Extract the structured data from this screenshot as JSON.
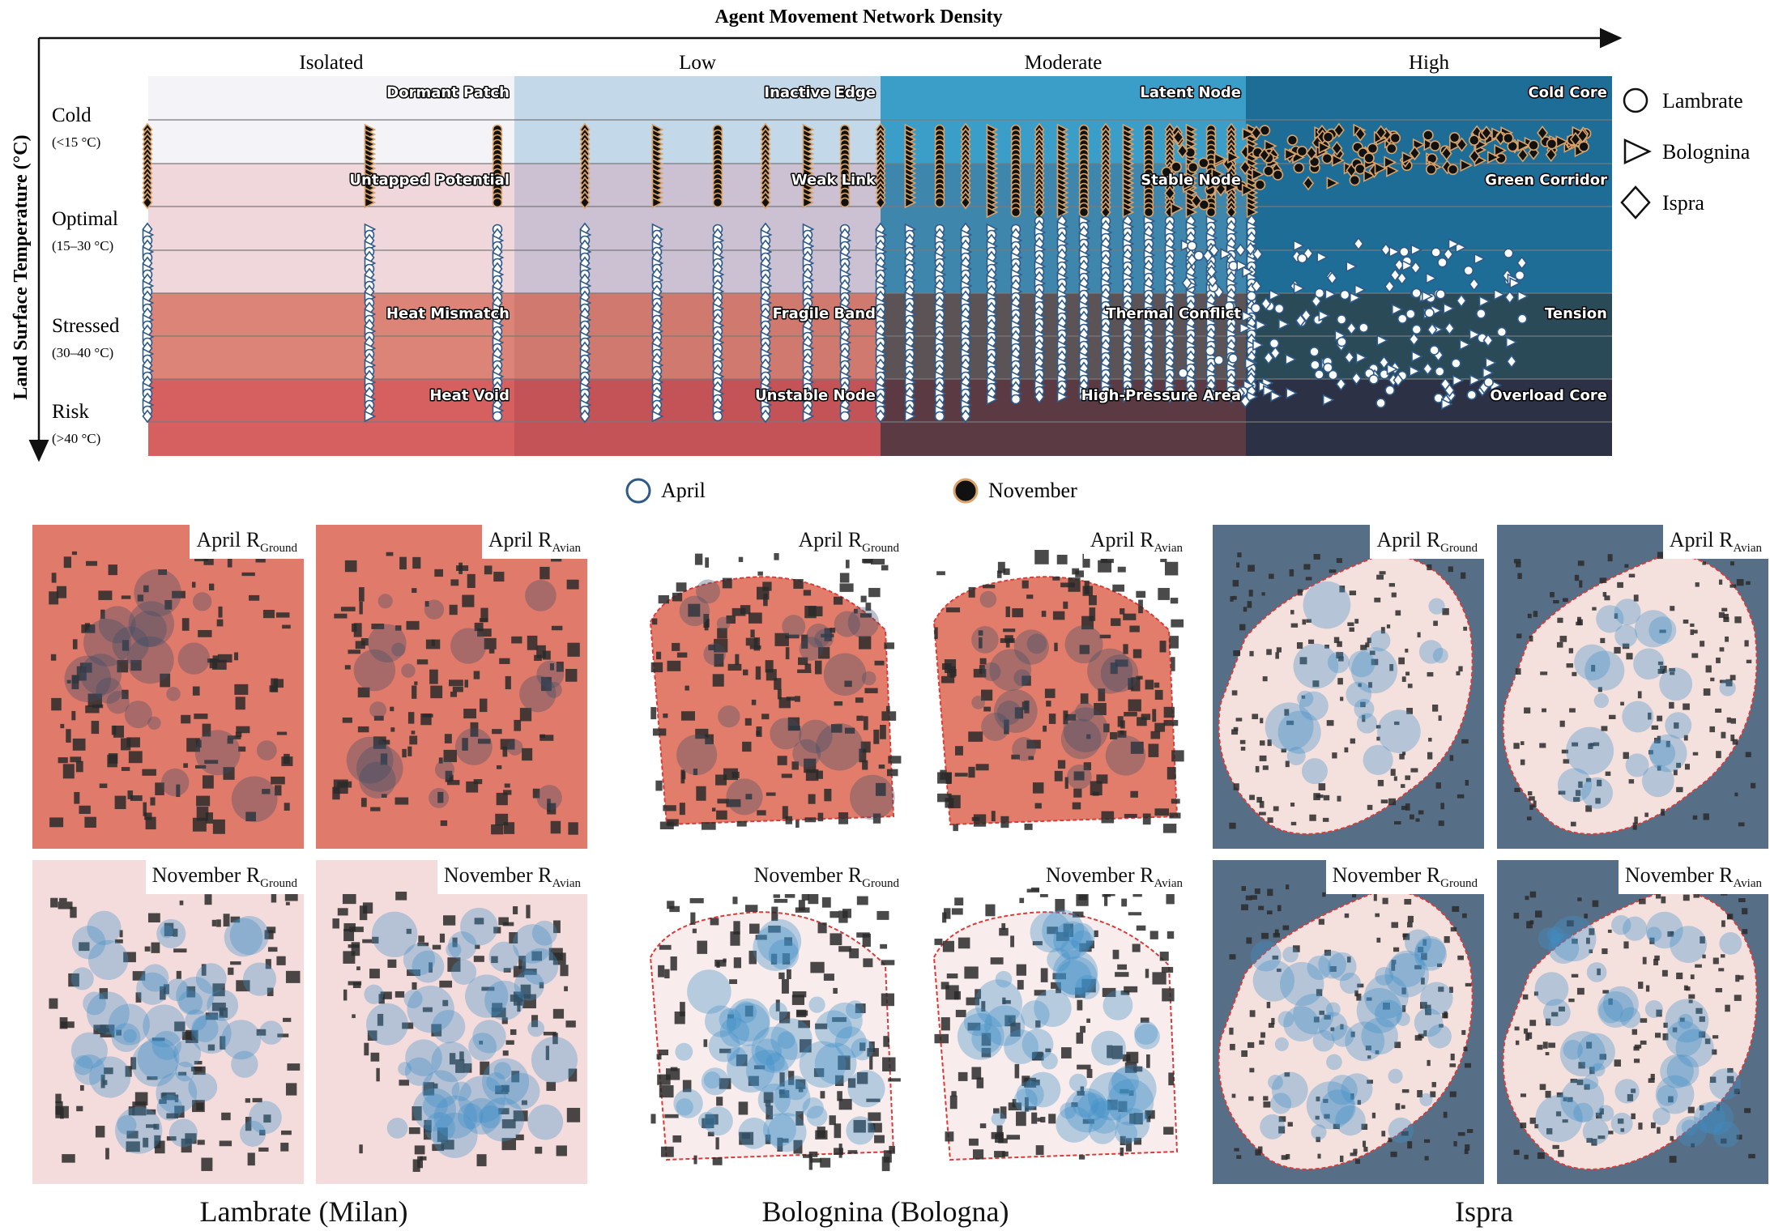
{
  "chart_data": {
    "type": "scatter",
    "title": "Agent Movement Network Density",
    "xlabel": "Agent Movement Network Density",
    "ylabel": "Land Surface Temperature (°C)",
    "x_categories": [
      "Isolated",
      "Low",
      "Moderate",
      "High"
    ],
    "y_categories": [
      {
        "name": "Cold",
        "range": "(<15 °C)"
      },
      {
        "name": "Optimal",
        "range": "(15–30 °C)"
      },
      {
        "name": "Stressed",
        "range": "(30–40 °C)"
      },
      {
        "name": "Risk",
        "range": "(>40 °C)"
      }
    ],
    "cells": [
      {
        "col": 0,
        "row": 0,
        "label": "Dormant Patch"
      },
      {
        "col": 0,
        "row": 1,
        "label": "Untapped Potential"
      },
      {
        "col": 0,
        "row": 2,
        "label": "Heat Mismatch"
      },
      {
        "col": 0,
        "row": 3,
        "label": "Heat Void"
      },
      {
        "col": 1,
        "row": 0,
        "label": "Inactive Edge"
      },
      {
        "col": 1,
        "row": 1,
        "label": "Weak Link"
      },
      {
        "col": 1,
        "row": 2,
        "label": "Fragile Band"
      },
      {
        "col": 1,
        "row": 3,
        "label": "Unstable Node"
      },
      {
        "col": 2,
        "row": 0,
        "label": "Latent Node"
      },
      {
        "col": 2,
        "row": 1,
        "label": "Stable Node"
      },
      {
        "col": 2,
        "row": 2,
        "label": "Thermal Conflict"
      },
      {
        "col": 2,
        "row": 3,
        "label": "High-Pressure Area"
      },
      {
        "col": 3,
        "row": 0,
        "label": "Cold Core"
      },
      {
        "col": 3,
        "row": 1,
        "label": "Green Corridor"
      },
      {
        "col": 3,
        "row": 2,
        "label": "Tension"
      },
      {
        "col": 3,
        "row": 3,
        "label": "Overload Core"
      }
    ],
    "cell_colors": [
      [
        "#f4f3f8",
        "#c3d8e8",
        "#3a9ec9",
        "#1e6d97"
      ],
      [
        "#f0d7dc",
        "#ccc0d3",
        "#3f86ad",
        "#1e6d97"
      ],
      [
        "#dc8478",
        "#d0796f",
        "#5c5356",
        "#2a4a58"
      ],
      [
        "#d65f5f",
        "#c45358",
        "#5b3a44",
        "#2c3146"
      ]
    ],
    "shape_legend": [
      {
        "name": "Lambrate",
        "shape": "circle"
      },
      {
        "name": "Bolognina",
        "shape": "triangle"
      },
      {
        "name": "Ispra",
        "shape": "diamond"
      }
    ],
    "color_legend": [
      {
        "name": "April",
        "fill": "#ffffff",
        "stroke": "#2f5a87"
      },
      {
        "name": "November",
        "fill": "#111111",
        "stroke": "#d9a36a"
      }
    ],
    "x_range": [
      0,
      4
    ],
    "y_range": [
      0,
      40
    ]
  },
  "maps": {
    "rows": [
      {
        "month": "April",
        "r": "R"
      },
      {
        "month": "November",
        "r": "R"
      }
    ],
    "panels": [
      {
        "site": 0,
        "row": 0,
        "month": "April",
        "sub": "Ground"
      },
      {
        "site": 0,
        "row": 0,
        "month": "April",
        "sub": "Avian"
      },
      {
        "site": 1,
        "row": 0,
        "month": "April",
        "sub": "Ground"
      },
      {
        "site": 1,
        "row": 0,
        "month": "April",
        "sub": "Avian"
      },
      {
        "site": 2,
        "row": 0,
        "month": "April",
        "sub": "Ground"
      },
      {
        "site": 2,
        "row": 0,
        "month": "April",
        "sub": "Avian"
      },
      {
        "site": 0,
        "row": 1,
        "month": "November",
        "sub": "Ground"
      },
      {
        "site": 0,
        "row": 1,
        "month": "November",
        "sub": "Avian"
      },
      {
        "site": 1,
        "row": 1,
        "month": "November",
        "sub": "Ground"
      },
      {
        "site": 1,
        "row": 1,
        "month": "November",
        "sub": "Avian"
      },
      {
        "site": 2,
        "row": 1,
        "month": "November",
        "sub": "Ground"
      },
      {
        "site": 2,
        "row": 1,
        "month": "November",
        "sub": "Avian"
      }
    ],
    "sites": [
      "Lambrate (Milan)",
      "Bolognina (Bologna)",
      "Ispra"
    ],
    "colors": {
      "heat": "#e07a6a",
      "cool": "#3f8fc9",
      "water": "#566f86",
      "building": "#2a2a2a",
      "boundary": "#d93b3b"
    }
  }
}
